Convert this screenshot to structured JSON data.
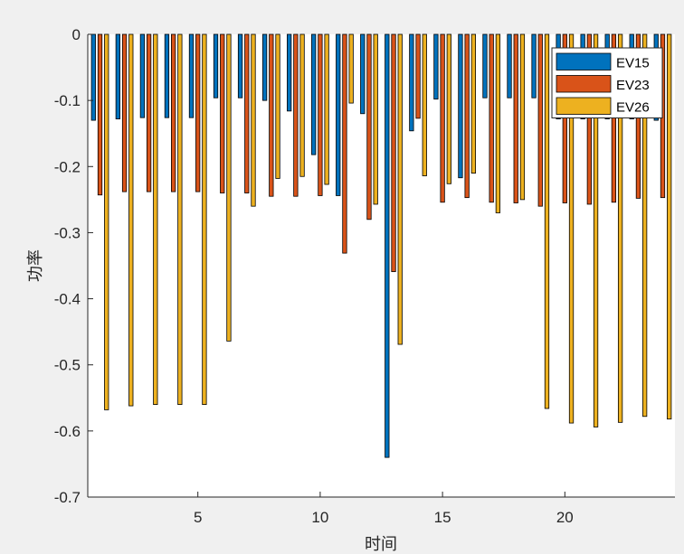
{
  "chart_data": {
    "type": "bar",
    "xlabel": "时间",
    "ylabel": "功率",
    "xlim": [
      0.5,
      24.5
    ],
    "ylim": [
      -0.7,
      0
    ],
    "x": [
      1,
      2,
      3,
      4,
      5,
      6,
      7,
      8,
      9,
      10,
      11,
      12,
      13,
      14,
      15,
      16,
      17,
      18,
      19,
      20,
      21,
      22,
      23,
      24
    ],
    "xticks": [
      5,
      10,
      15,
      20
    ],
    "yticks": [
      0,
      -0.1,
      -0.2,
      -0.3,
      -0.4,
      -0.5,
      -0.6,
      -0.7
    ],
    "ytick_labels": [
      "0",
      "-0.1",
      "-0.2",
      "-0.3",
      "-0.4",
      "-0.5",
      "-0.6",
      "-0.7"
    ],
    "legend_position": "top-right",
    "grid": false,
    "series": [
      {
        "name": "EV15",
        "color": "#0072BD",
        "values": [
          -0.13,
          -0.128,
          -0.126,
          -0.126,
          -0.126,
          -0.096,
          -0.096,
          -0.1,
          -0.116,
          -0.182,
          -0.244,
          -0.12,
          -0.64,
          -0.146,
          -0.098,
          -0.217,
          -0.096,
          -0.096,
          -0.096,
          -0.128,
          -0.128,
          -0.128,
          -0.128,
          -0.13
        ]
      },
      {
        "name": "EV23",
        "color": "#D95319",
        "values": [
          -0.243,
          -0.238,
          -0.238,
          -0.238,
          -0.238,
          -0.24,
          -0.24,
          -0.245,
          -0.245,
          -0.244,
          -0.331,
          -0.28,
          -0.359,
          -0.127,
          -0.254,
          -0.247,
          -0.254,
          -0.255,
          -0.26,
          -0.255,
          -0.257,
          -0.254,
          -0.248,
          -0.247
        ]
      },
      {
        "name": "EV26",
        "color": "#EDB120",
        "values": [
          -0.568,
          -0.562,
          -0.56,
          -0.56,
          -0.56,
          -0.464,
          -0.26,
          -0.218,
          -0.215,
          -0.227,
          -0.104,
          -0.257,
          -0.469,
          -0.214,
          -0.226,
          -0.21,
          -0.27,
          -0.25,
          -0.566,
          -0.588,
          -0.594,
          -0.587,
          -0.578,
          -0.582
        ]
      }
    ]
  }
}
